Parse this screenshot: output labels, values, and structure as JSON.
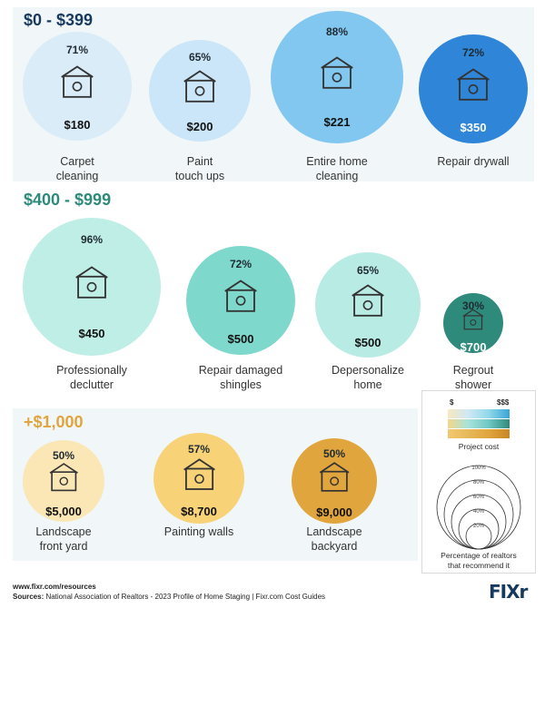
{
  "chart_data": {
    "type": "bubble",
    "sections": [
      {
        "title": "$0 - $399",
        "color": "#163a5e",
        "items": [
          {
            "label": "Carpet\ncleaning",
            "percent": "71%",
            "price": "$180",
            "icon": "carpet-cleaning-icon"
          },
          {
            "label": "Paint\ntouch ups",
            "percent": "65%",
            "price": "$200",
            "icon": "paint-brush-icon"
          },
          {
            "label": "Entire home\ncleaning",
            "percent": "88%",
            "price": "$221",
            "icon": "home-cleaning-icon"
          },
          {
            "label": "Repair drywall",
            "percent": "72%",
            "price": "$350",
            "icon": "drywall-tools-icon"
          }
        ]
      },
      {
        "title": "$400 - $999",
        "color": "#2e8a7a",
        "items": [
          {
            "label": "Professionally\ndeclutter",
            "percent": "96%",
            "price": "$450",
            "icon": "boxes-icon"
          },
          {
            "label": "Repair damaged\nshingles",
            "percent": "72%",
            "price": "$500",
            "icon": "shingles-icon"
          },
          {
            "label": "Depersonalize\nhome",
            "percent": "65%",
            "price": "$500",
            "icon": "person-home-icon"
          },
          {
            "label": "Regrout\nshower",
            "percent": "30%",
            "price": "$700",
            "icon": "shower-icon"
          }
        ]
      },
      {
        "title": "+$1,000",
        "color": "#e0a53c",
        "items": [
          {
            "label": "Landscape\nfront yard",
            "percent": "50%",
            "price": "$5,000",
            "icon": "front-yard-icon"
          },
          {
            "label": "Painting walls",
            "percent": "57%",
            "price": "$8,700",
            "icon": "painting-walls-icon"
          },
          {
            "label": "Landscape\nbackyard",
            "percent": "50%",
            "price": "$9,000",
            "icon": "backyard-icon"
          }
        ]
      }
    ],
    "legend": {
      "cost_low": "$",
      "cost_high": "$$$",
      "cost_title": "Project cost",
      "rings": [
        "100%",
        "80%",
        "60%",
        "40%",
        "20%"
      ],
      "size_title": "Percentage of realtors\nthat recommend it"
    }
  },
  "footer": {
    "url": "www.fixr.com/resources",
    "sources_label": "Sources:",
    "sources_text": " National Association of Realtors - 2023 Profile of Home Staging  |  Fixr.com Cost Guides"
  },
  "logo": "FIXr"
}
